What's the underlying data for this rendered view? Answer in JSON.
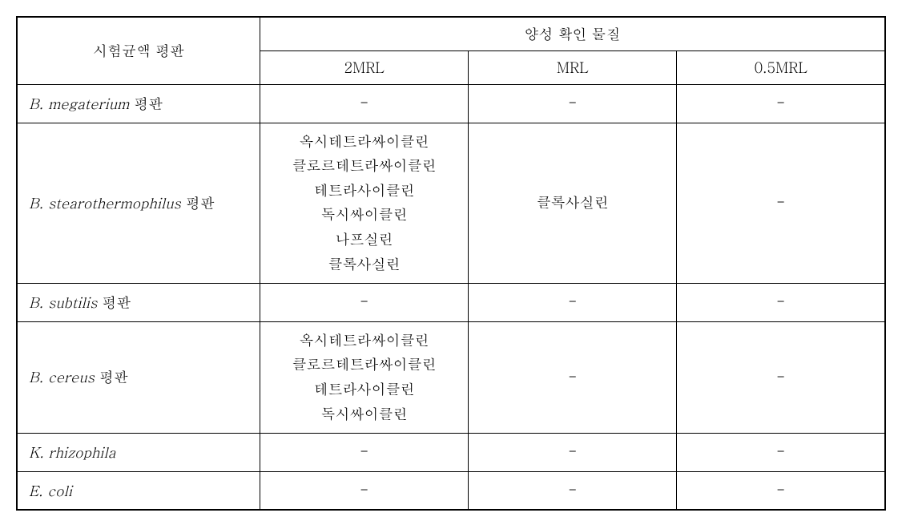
{
  "table": {
    "header": {
      "row_label": "시험균액 평판",
      "group_label": "양성 확인 물질",
      "columns": [
        "2MRL",
        "MRL",
        "0.5MRL"
      ]
    },
    "rows": [
      {
        "label_italic": "B. megaterium",
        "label_plain": " 평판",
        "cells": [
          "-",
          "-",
          "-"
        ]
      },
      {
        "label_italic": "B. stearothermophilus",
        "label_plain": " 평판",
        "cells": [
          "옥시테트라싸이클린\n클로르테트라싸이클린\n테트라사이클린\n독시싸이클린\n나프실린\n클록사실린",
          "클록사실린",
          "-"
        ]
      },
      {
        "label_italic": "B. subtilis",
        "label_plain": " 평판",
        "cells": [
          "-",
          "-",
          "-"
        ]
      },
      {
        "label_italic": "B. cereus",
        "label_plain": " 평판",
        "cells": [
          "옥시테트라싸이클린\n클로르테트라싸이클린\n테트라사이클린\n독시싸이클린",
          "-",
          "-"
        ]
      },
      {
        "label_italic": "K. rhizophila",
        "label_plain": "",
        "cells": [
          "-",
          "-",
          "-"
        ]
      },
      {
        "label_italic": "E. coli",
        "label_plain": "",
        "cells": [
          "-",
          "-",
          "-"
        ]
      }
    ]
  }
}
